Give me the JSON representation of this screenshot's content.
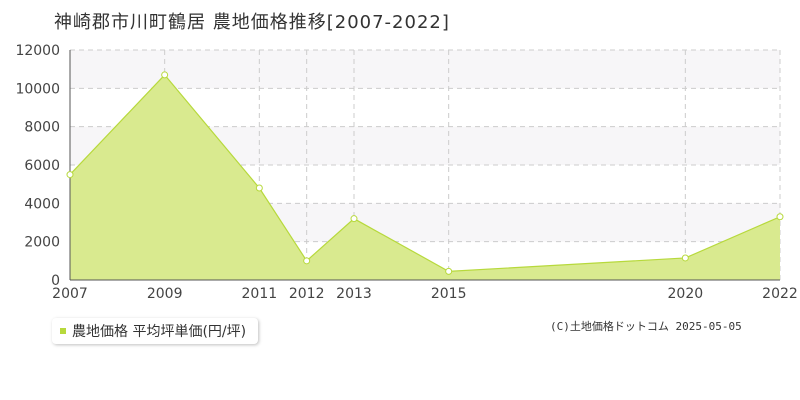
{
  "title": "神崎郡市川町鶴居 農地価格推移[2007-2022]",
  "legend": {
    "label": "農地価格 平均坪単価(円/坪)",
    "color": "#b7d93c"
  },
  "copyright": "(C)土地価格ドットコム 2025-05-05",
  "colors": {
    "fill": "#d9ea8f",
    "line": "#b7d93c",
    "grid": "#cccccc",
    "band": "#f7f6f8"
  },
  "chart_data": {
    "type": "area",
    "x": [
      2007,
      2009,
      2011,
      2012,
      2013,
      2015,
      2020,
      2022
    ],
    "xticks": [
      "2007",
      "2009",
      "2011",
      "2012",
      "2013",
      "2015",
      "2020",
      "2022"
    ],
    "yticks": [
      "0",
      "2000",
      "4000",
      "6000",
      "8000",
      "10000",
      "12000"
    ],
    "ylim": [
      0,
      12000
    ],
    "series": [
      {
        "name": "農地価格 平均坪単価(円/坪)",
        "values": [
          5500,
          10700,
          4800,
          1000,
          3200,
          450,
          1150,
          3300
        ]
      }
    ],
    "grid": true,
    "legend_position": "bottom-left"
  }
}
